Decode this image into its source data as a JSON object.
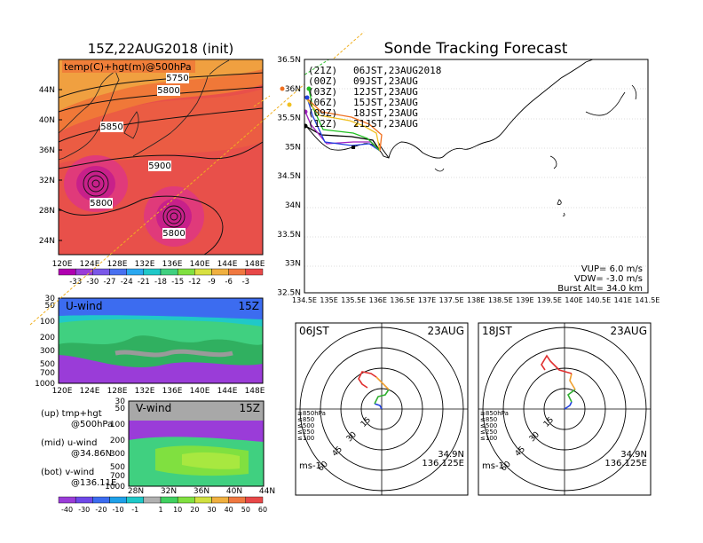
{
  "map_panel": {
    "title": "15Z,22AUG2018 (init)",
    "field_label": "temp(C)+hgt(m)@500hPa",
    "lat_labels": [
      "44N",
      "40N",
      "36N",
      "32N",
      "28N",
      "24N"
    ],
    "lon_labels": [
      "120E",
      "124E",
      "128E",
      "132E",
      "136E",
      "140E",
      "144E",
      "148E"
    ],
    "contour_labels": [
      "5750",
      "5800",
      "5850",
      "5900",
      "5800",
      "5800"
    ],
    "colorbar_labels": [
      "-33",
      "-30",
      "-27",
      "-24",
      "-21",
      "-18",
      "-15",
      "-12",
      "-9",
      "-6",
      "-3"
    ],
    "colorbar_colors": [
      "#b000b0",
      "#9a3cd8",
      "#7a58e8",
      "#4870f0",
      "#2aa8f0",
      "#20c8c8",
      "#40d080",
      "#80e040",
      "#d8e040",
      "#f0b040",
      "#f07840",
      "#e84848"
    ]
  },
  "uwind_panel": {
    "label": "U-wind",
    "time": "15Z",
    "y_labels": [
      "30",
      "50",
      "100",
      "200",
      "300",
      "500",
      "700",
      "1000"
    ],
    "x_labels": [
      "120E",
      "124E",
      "128E",
      "132E",
      "136E",
      "140E",
      "144E",
      "148E"
    ]
  },
  "vwind_panel": {
    "label": "V-wind",
    "time": "15Z",
    "y_labels": [
      "30",
      "50",
      "100",
      "200",
      "300",
      "500",
      "700",
      "1000"
    ],
    "x_labels": [
      "28N",
      "32N",
      "36N",
      "40N",
      "44N"
    ],
    "colorbar_labels": [
      "-40",
      "-30",
      "-20",
      "-10",
      "-1",
      "1",
      "10",
      "20",
      "30",
      "40",
      "50",
      "60"
    ],
    "colorbar_colors": [
      "#9a3cd8",
      "#6e48e8",
      "#3c6cf0",
      "#1ea0e8",
      "#1ec8c8",
      "#b0b0b0",
      "#40d060",
      "#80e040",
      "#d0e040",
      "#f0b040",
      "#f07840",
      "#e84848"
    ]
  },
  "legend_notes": [
    {
      "a": "(up) tmp+hgt",
      "b": "@500hPa"
    },
    {
      "a": "(mid) u-wind",
      "b": "@34.86N"
    },
    {
      "a": "(bot) v-wind",
      "b": "@136.11E"
    }
  ],
  "tracking": {
    "title": "Sonde Tracking Forecast",
    "lat_labels": [
      "36.5N",
      "36N",
      "35.5N",
      "35N",
      "34.5N",
      "34N",
      "33.5N",
      "33N",
      "32.5N"
    ],
    "lon_labels": [
      "134.5E",
      "135E",
      "135.5E",
      "136E",
      "136.5E",
      "137E",
      "137.5E",
      "138E",
      "138.5E",
      "139E",
      "139.5E",
      "140E",
      "140.5E",
      "141E",
      "141.5E"
    ],
    "launches": [
      {
        "z": "(21Z)",
        "t": "06JST,23AUG2018",
        "color": "#000000"
      },
      {
        "z": "(00Z)",
        "t": "09JST,23AUG",
        "color": "#a020c0"
      },
      {
        "z": "(03Z)",
        "t": "12JST,23AUG",
        "color": "#2040e0"
      },
      {
        "z": "(06Z)",
        "t": "15JST,23AUG",
        "color": "#20c020"
      },
      {
        "z": "(09Z)",
        "t": "18JST,23AUG",
        "color": "#f0c020"
      },
      {
        "z": "(12Z)",
        "t": "21JST,23AUG",
        "color": "#f07020"
      }
    ],
    "params": [
      "VUP= 6.0 m/s",
      "VDW= -3.0 m/s",
      "Burst Alt= 34.0 km"
    ]
  },
  "hodographs": [
    {
      "time": "06JST",
      "date": "23AUG",
      "ring_labels": [
        "15",
        "30",
        "45",
        "60"
      ],
      "levels": [
        "≥850hPa",
        "≤850",
        "≤500",
        "≤250",
        "≤100"
      ],
      "level_colors": [
        "#e03030",
        "#f0a030",
        "#30b030",
        "#2040e0",
        "#2040e0"
      ],
      "pos1": "34.9N",
      "pos2": "136.125E",
      "unit": "ms-1"
    },
    {
      "time": "18JST",
      "date": "23AUG",
      "ring_labels": [
        "15",
        "30",
        "45",
        "60"
      ],
      "levels": [
        "≥850hPa",
        "≤850",
        "≤500",
        "≤250",
        "≤100"
      ],
      "level_colors": [
        "#e03030",
        "#f0a030",
        "#30b030",
        "#2040e0",
        "#2040e0"
      ],
      "pos1": "34.9N",
      "pos2": "136.125E",
      "unit": "ms-1"
    }
  ],
  "chart_data": [
    {
      "type": "heatmap",
      "title": "15Z,22AUG2018 (init)",
      "label": "temp(C)+hgt(m)@500hPa",
      "xlim": [
        "120E",
        "150E"
      ],
      "ylim": [
        "22N",
        "48N"
      ],
      "contours": [
        5750,
        5800,
        5850,
        5900,
        5800,
        5800
      ]
    },
    {
      "type": "heatmap",
      "label": "U-wind",
      "time": "15Z"
    },
    {
      "type": "heatmap",
      "label": "V-wind",
      "time": "15Z"
    },
    {
      "type": "line",
      "title": "Sonde Tracking Forecast",
      "xlim": [
        134.5,
        141.5
      ],
      "ylim": [
        32.5,
        36.5
      ]
    },
    {
      "type": "line",
      "label": "06JST 23AUG hodograph"
    },
    {
      "type": "line",
      "label": "18JST 23AUG hodograph"
    }
  ]
}
